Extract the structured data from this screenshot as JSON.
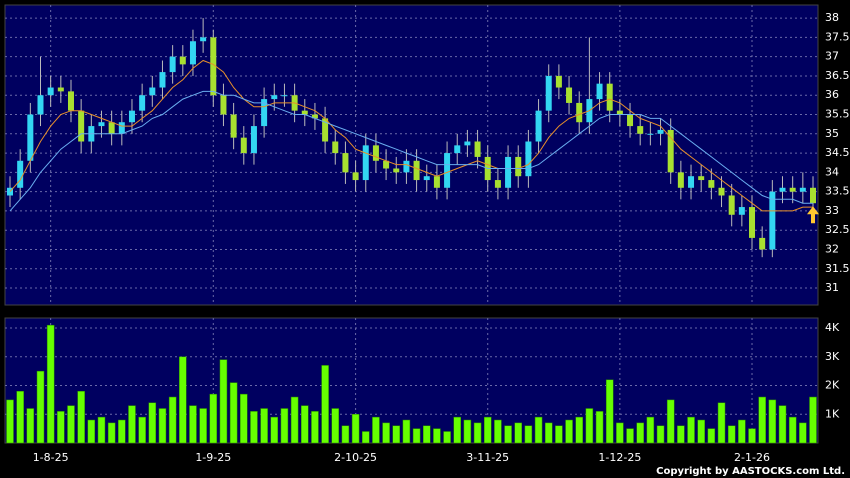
{
  "chart_data": {
    "type": "candlestick",
    "categories": [
      null,
      null,
      null,
      null,
      "1-8-25",
      null,
      null,
      null,
      null,
      null,
      null,
      null,
      null,
      null,
      null,
      null,
      null,
      null,
      null,
      null,
      "1-9-25",
      null,
      null,
      null,
      null,
      null,
      null,
      null,
      null,
      null,
      null,
      null,
      null,
      null,
      "2-10-25",
      null,
      null,
      null,
      null,
      null,
      null,
      null,
      null,
      null,
      null,
      null,
      null,
      "3-11-25",
      null,
      null,
      null,
      null,
      null,
      null,
      null,
      null,
      null,
      null,
      null,
      null,
      "1-12-25",
      null,
      null,
      null,
      null,
      null,
      null,
      null,
      null,
      null,
      null,
      null,
      null,
      "2-1-26",
      null,
      null,
      null,
      null,
      null,
      null
    ],
    "open": [
      33.4,
      33.6,
      34.3,
      35.5,
      36.0,
      36.2,
      36.1,
      35.6,
      34.8,
      35.2,
      35.3,
      35.0,
      35.3,
      35.6,
      36.0,
      36.2,
      36.6,
      37.0,
      36.8,
      37.4,
      37.5,
      36.0,
      35.5,
      34.9,
      34.5,
      35.2,
      35.9,
      36.0,
      36.0,
      35.6,
      35.5,
      35.4,
      34.8,
      34.5,
      34.0,
      33.8,
      34.7,
      34.3,
      34.1,
      34.0,
      34.3,
      33.8,
      33.9,
      33.6,
      34.5,
      34.7,
      34.8,
      34.4,
      33.8,
      33.6,
      34.4,
      33.9,
      34.8,
      35.6,
      36.5,
      36.2,
      35.8,
      35.3,
      35.9,
      36.3,
      35.6,
      35.5,
      35.2,
      35.0,
      35.0,
      35.1,
      34.0,
      33.6,
      33.9,
      33.8,
      33.6,
      33.4,
      32.9,
      33.1,
      32.3,
      32.0,
      33.5,
      33.6,
      33.5,
      33.6
    ],
    "high": [
      33.9,
      34.6,
      35.8,
      37.0,
      36.5,
      36.5,
      36.4,
      35.9,
      35.5,
      35.6,
      35.6,
      35.6,
      35.9,
      36.3,
      36.5,
      36.9,
      37.3,
      37.3,
      37.7,
      38.0,
      37.7,
      36.3,
      35.8,
      35.2,
      35.5,
      36.2,
      36.3,
      36.3,
      36.3,
      35.9,
      35.8,
      35.7,
      35.1,
      34.8,
      34.3,
      35.0,
      35.0,
      34.6,
      34.4,
      34.6,
      34.6,
      34.2,
      34.2,
      34.8,
      35.0,
      35.1,
      35.1,
      34.7,
      34.1,
      34.7,
      34.7,
      35.1,
      35.9,
      36.8,
      36.8,
      36.5,
      36.1,
      37.5,
      36.6,
      36.6,
      35.9,
      35.8,
      35.5,
      35.3,
      35.4,
      35.4,
      34.3,
      34.2,
      34.2,
      34.1,
      33.9,
      33.7,
      33.4,
      33.4,
      32.6,
      33.8,
      33.9,
      33.9,
      34.0,
      33.9
    ],
    "low": [
      33.1,
      33.3,
      34.0,
      35.2,
      35.7,
      35.8,
      35.3,
      34.5,
      34.5,
      34.9,
      34.7,
      34.7,
      35.0,
      35.3,
      35.7,
      35.9,
      36.3,
      36.5,
      36.5,
      37.1,
      35.7,
      35.2,
      34.6,
      34.2,
      34.2,
      34.9,
      35.6,
      35.7,
      35.3,
      35.2,
      35.1,
      34.5,
      34.2,
      33.7,
      33.5,
      33.5,
      34.0,
      33.8,
      33.7,
      33.7,
      33.5,
      33.5,
      33.3,
      33.3,
      34.2,
      34.4,
      34.1,
      33.5,
      33.3,
      33.3,
      33.6,
      33.6,
      34.5,
      35.3,
      35.9,
      35.5,
      35.0,
      35.0,
      35.6,
      35.3,
      35.2,
      34.9,
      34.7,
      34.7,
      34.7,
      33.7,
      33.3,
      33.3,
      33.5,
      33.3,
      33.1,
      32.6,
      32.6,
      32.0,
      31.8,
      31.8,
      33.2,
      33.2,
      33.2,
      32.9
    ],
    "close": [
      33.6,
      34.3,
      35.5,
      36.0,
      36.2,
      36.1,
      35.6,
      34.8,
      35.2,
      35.3,
      35.0,
      35.3,
      35.6,
      36.0,
      36.2,
      36.6,
      37.0,
      36.8,
      37.4,
      37.5,
      36.0,
      35.5,
      34.9,
      34.5,
      35.2,
      35.9,
      36.0,
      36.0,
      35.6,
      35.5,
      35.4,
      34.8,
      34.5,
      34.0,
      33.8,
      34.7,
      34.3,
      34.1,
      34.0,
      34.3,
      33.8,
      33.9,
      33.6,
      34.5,
      34.7,
      34.8,
      34.4,
      33.8,
      33.6,
      34.4,
      33.9,
      34.8,
      35.6,
      36.5,
      36.2,
      35.8,
      35.3,
      35.9,
      36.3,
      35.6,
      35.5,
      35.2,
      35.0,
      35.0,
      35.1,
      34.0,
      33.6,
      33.9,
      33.8,
      33.6,
      33.4,
      32.9,
      33.1,
      32.3,
      32.0,
      33.5,
      33.6,
      33.5,
      33.6,
      33.2
    ],
    "up_color": "#33d6f2",
    "down_color": "#a8e030",
    "moving_averages": [
      {
        "color": "#e8902a",
        "values": [
          33.5,
          33.8,
          34.3,
          34.8,
          35.2,
          35.5,
          35.6,
          35.6,
          35.5,
          35.4,
          35.3,
          35.2,
          35.2,
          35.4,
          35.6,
          35.9,
          36.2,
          36.4,
          36.7,
          36.9,
          36.8,
          36.6,
          36.2,
          35.9,
          35.7,
          35.7,
          35.8,
          35.8,
          35.8,
          35.7,
          35.6,
          35.4,
          35.1,
          34.9,
          34.6,
          34.5,
          34.4,
          34.3,
          34.2,
          34.2,
          34.1,
          34.0,
          33.9,
          34.0,
          34.1,
          34.2,
          34.3,
          34.2,
          34.1,
          34.1,
          34.1,
          34.2,
          34.5,
          34.9,
          35.2,
          35.4,
          35.5,
          35.6,
          35.8,
          35.9,
          35.8,
          35.6,
          35.4,
          35.3,
          35.2,
          34.9,
          34.6,
          34.4,
          34.2,
          34.0,
          33.8,
          33.6,
          33.4,
          33.2,
          33.0,
          33.0,
          33.0,
          33.0,
          33.1,
          33.1
        ]
      },
      {
        "color": "#6aaef0",
        "values": [
          33.0,
          33.3,
          33.6,
          34.0,
          34.3,
          34.6,
          34.8,
          35.0,
          35.0,
          35.0,
          35.0,
          35.0,
          35.1,
          35.2,
          35.4,
          35.5,
          35.7,
          35.9,
          36.0,
          36.1,
          36.1,
          36.0,
          36.0,
          35.9,
          35.8,
          35.8,
          35.7,
          35.6,
          35.5,
          35.5,
          35.4,
          35.3,
          35.2,
          35.1,
          35.0,
          34.9,
          34.8,
          34.7,
          34.6,
          34.5,
          34.4,
          34.3,
          34.2,
          34.2,
          34.2,
          34.2,
          34.2,
          34.1,
          34.1,
          34.1,
          34.1,
          34.1,
          34.2,
          34.4,
          34.6,
          34.8,
          35.0,
          35.2,
          35.4,
          35.5,
          35.5,
          35.5,
          35.5,
          35.4,
          35.4,
          35.2,
          35.0,
          34.8,
          34.6,
          34.4,
          34.2,
          34.0,
          33.8,
          33.6,
          33.4,
          33.3,
          33.3,
          33.3,
          33.2,
          33.2
        ]
      }
    ],
    "ylim": [
      30.56,
      38.34
    ],
    "yticks": [
      31,
      31.5,
      32,
      32.5,
      33,
      33.5,
      34,
      34.5,
      35,
      35.5,
      36,
      36.5,
      37,
      37.5,
      38
    ],
    "grid": true,
    "volume": {
      "color": "#66ff00",
      "values": [
        1500,
        1800,
        1200,
        2500,
        4100,
        1100,
        1300,
        1800,
        800,
        900,
        700,
        800,
        1300,
        900,
        1400,
        1200,
        1600,
        3000,
        1300,
        1200,
        1700,
        2900,
        2100,
        1700,
        1100,
        1200,
        900,
        1200,
        1600,
        1300,
        1100,
        2700,
        1200,
        600,
        1000,
        400,
        900,
        700,
        600,
        800,
        500,
        600,
        500,
        400,
        900,
        800,
        700,
        900,
        800,
        600,
        700,
        600,
        900,
        700,
        600,
        800,
        900,
        1200,
        1100,
        2200,
        700,
        500,
        700,
        900,
        600,
        1500,
        600,
        900,
        800,
        500,
        1400,
        600,
        800,
        500,
        1600,
        1500,
        1300,
        900,
        700,
        1600
      ],
      "ylim": [
        0,
        4350
      ],
      "yticks": [
        {
          "value": 1000,
          "label": "1K"
        },
        {
          "value": 2000,
          "label": "2K"
        },
        {
          "value": 3000,
          "label": "3K"
        },
        {
          "value": 4000,
          "label": "4K"
        }
      ]
    },
    "footer": "Copyright by AASTOCKS.com Ltd."
  }
}
